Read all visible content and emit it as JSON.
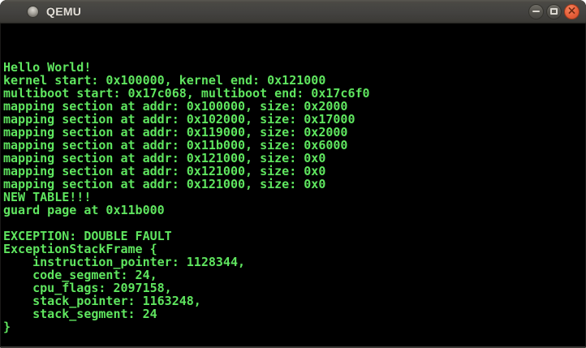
{
  "window": {
    "title": "QEMU",
    "controls": {
      "close_glyph": "×",
      "icons": {
        "window": "circle-app-icon",
        "minimize": "minus-icon",
        "maximize": "square-icon",
        "close": "x-icon"
      }
    },
    "titlebar_color_top": "#4a4944",
    "titlebar_color_bottom": "#3c3b37",
    "close_button_color": "#e75f3a"
  },
  "terminal": {
    "text_color": "#5fe55f",
    "background_color": "#000000",
    "lines": [
      "Hello World!",
      "kernel start: 0x100000, kernel end: 0x121000",
      "multiboot start: 0x17c068, multiboot end: 0x17c6f0",
      "mapping section at addr: 0x100000, size: 0x2000",
      "mapping section at addr: 0x102000, size: 0x17000",
      "mapping section at addr: 0x119000, size: 0x2000",
      "mapping section at addr: 0x11b000, size: 0x6000",
      "mapping section at addr: 0x121000, size: 0x0",
      "mapping section at addr: 0x121000, size: 0x0",
      "mapping section at addr: 0x121000, size: 0x0",
      "NEW TABLE!!!",
      "guard page at 0x11b000",
      "",
      "EXCEPTION: DOUBLE FAULT",
      "ExceptionStackFrame {",
      "    instruction_pointer: 1128344,",
      "    code_segment: 24,",
      "    cpu_flags: 2097158,",
      "    stack_pointer: 1163248,",
      "    stack_segment: 24",
      "}"
    ]
  }
}
